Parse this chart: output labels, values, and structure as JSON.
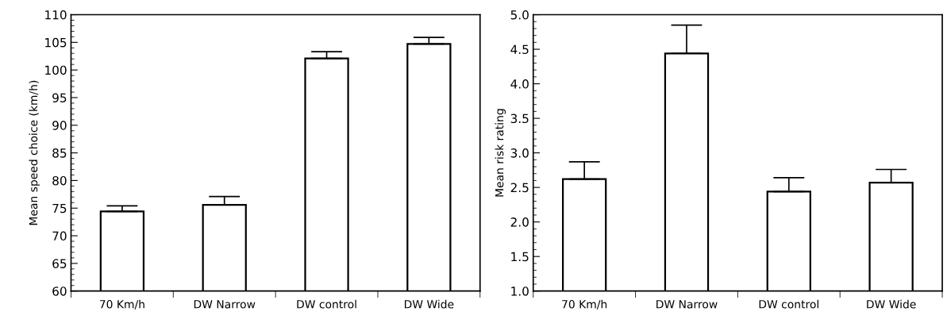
{
  "chart_data": [
    {
      "type": "bar",
      "ylabel": "Mean speed choice (km/h)",
      "categories": [
        "70 Km/h",
        "DW Narrow",
        "DW control",
        "DW Wide"
      ],
      "values": [
        74.4,
        75.6,
        102.1,
        104.7
      ],
      "errors": [
        [
          74.4,
          75.4
        ],
        [
          75.6,
          77.1
        ],
        [
          102.1,
          103.3
        ],
        [
          104.7,
          105.9
        ]
      ],
      "color": "#ffffff",
      "ylim": [
        60,
        110
      ],
      "yticks": [
        60,
        65,
        70,
        75,
        80,
        85,
        90,
        95,
        100,
        105,
        110
      ],
      "grid": false,
      "legend": false
    },
    {
      "type": "bar",
      "ylabel": "Mean risk rating",
      "categories": [
        "70 Km/h",
        "DW Narrow",
        "DW control",
        "DW Wide"
      ],
      "values": [
        2.62,
        4.44,
        2.44,
        2.57
      ],
      "errors": [
        [
          2.62,
          2.87
        ],
        [
          4.44,
          4.85
        ],
        [
          2.44,
          2.64
        ],
        [
          2.57,
          2.76
        ]
      ],
      "color": "#ffffff",
      "ylim": [
        1.0,
        5.0
      ],
      "yticks": [
        {
          "value": 1.0,
          "label": "1.0"
        },
        {
          "value": 1.5,
          "label": "1.5"
        },
        {
          "value": 2.0,
          "label": "2.0"
        },
        {
          "value": 2.5,
          "label": "2.5"
        },
        {
          "value": 3.0,
          "label": "3.0"
        },
        {
          "value": 3.5,
          "label": "3.5"
        },
        {
          "value": 4.0,
          "label": "4.0"
        },
        {
          "value": 4.5,
          "label": "4.5"
        },
        {
          "value": 5.0,
          "label": "5.0"
        }
      ],
      "grid": false,
      "legend": false
    }
  ]
}
